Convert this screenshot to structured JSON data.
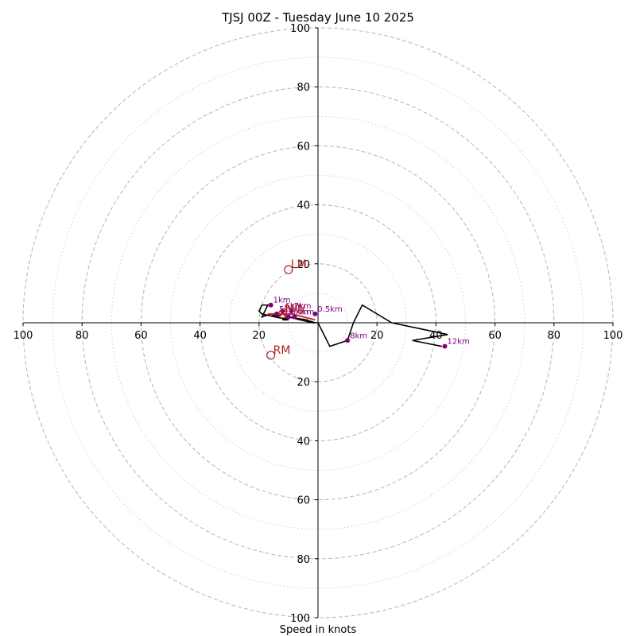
{
  "chart_data": {
    "type": "hodograph",
    "title": "TJSJ 00Z - Tuesday June 10 2025",
    "xlabel": "Speed in knots",
    "range": [
      -100,
      100
    ],
    "ring_major": [
      20,
      40,
      60,
      80,
      100
    ],
    "ring_minor": [
      10,
      30,
      50,
      70,
      90
    ],
    "x_ticks": [
      {
        "value": -100,
        "label": "100"
      },
      {
        "value": -80,
        "label": "80"
      },
      {
        "value": -60,
        "label": "60"
      },
      {
        "value": -40,
        "label": "40"
      },
      {
        "value": -20,
        "label": "20"
      },
      {
        "value": 20,
        "label": "20"
      },
      {
        "value": 40,
        "label": "40"
      },
      {
        "value": 60,
        "label": "60"
      },
      {
        "value": 80,
        "label": "80"
      },
      {
        "value": 100,
        "label": "100"
      }
    ],
    "y_ticks": [
      {
        "value": 100,
        "label": "100"
      },
      {
        "value": 80,
        "label": "80"
      },
      {
        "value": 60,
        "label": "60"
      },
      {
        "value": 40,
        "label": "40"
      },
      {
        "value": 20,
        "label": "20"
      },
      {
        "value": -20,
        "label": "20"
      },
      {
        "value": -40,
        "label": "40"
      },
      {
        "value": -60,
        "label": "60"
      },
      {
        "value": -80,
        "label": "80"
      },
      {
        "value": -100,
        "label": "100"
      }
    ],
    "hodograph_trace": {
      "u": [
        -1,
        -4,
        -10,
        -12,
        -10,
        -19,
        -20,
        -19,
        -17,
        -19,
        -16,
        -14,
        -12,
        -10,
        -6,
        -2,
        0,
        4,
        10,
        12,
        15,
        25,
        44,
        32,
        42
      ],
      "v": [
        0,
        1,
        2,
        1,
        1,
        3,
        4,
        6,
        6,
        2,
        3,
        2,
        3,
        2,
        1,
        0,
        0,
        -8,
        -6,
        0,
        6,
        0,
        -4,
        -6,
        -8
      ]
    },
    "red_segment": {
      "u": [
        -17,
        -13,
        -9,
        -5,
        -1
      ],
      "v": [
        3,
        3,
        3,
        2,
        1
      ]
    },
    "height_markers": [
      {
        "label": "1km",
        "u": -16,
        "v": 6
      },
      {
        "label": "5km",
        "u": -14,
        "v": 3
      },
      {
        "label": "6km",
        "u": -12,
        "v": 4
      },
      {
        "label": "7km",
        "u": -9,
        "v": 4
      },
      {
        "label": "3km",
        "u": -10,
        "v": 2
      },
      {
        "label": "4km",
        "u": -8,
        "v": 2
      },
      {
        "label": "0.5km",
        "u": -1,
        "v": 3
      },
      {
        "label": "8km",
        "u": 10,
        "v": -6
      },
      {
        "label": "12km",
        "u": 43,
        "v": -8
      }
    ],
    "storm_motion": [
      {
        "label": "LM",
        "u": -10,
        "v": 18
      },
      {
        "label": "RM",
        "u": -16,
        "v": -11
      },
      {
        "label": "MW",
        "u": -12,
        "v": 3
      }
    ],
    "colors": {
      "trace": "#000000",
      "red_segment": "#d62728",
      "markers": "#800080",
      "storm": "#b22222",
      "grid": "#bbbbbb"
    }
  }
}
